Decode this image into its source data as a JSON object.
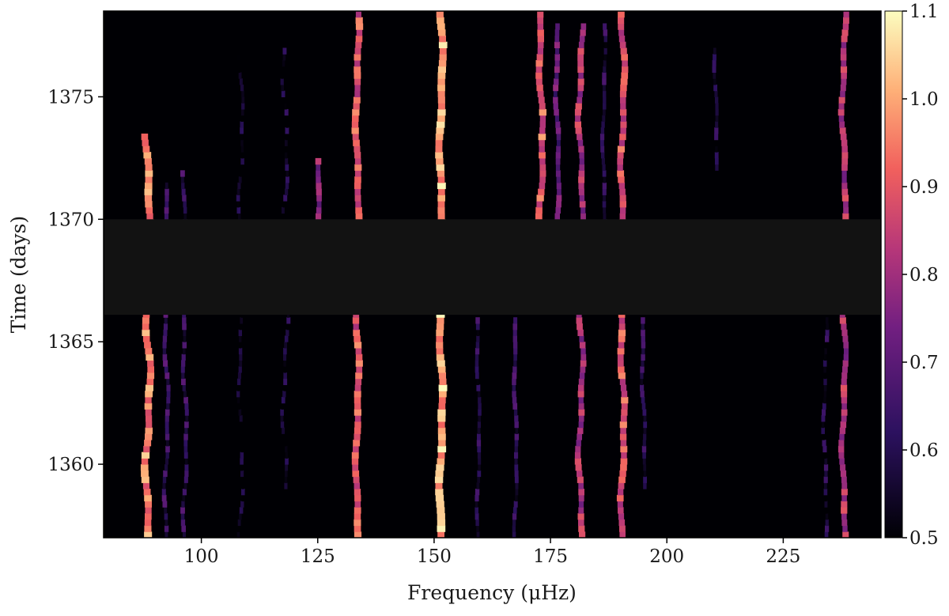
{
  "chart_data": {
    "type": "heatmap",
    "title": "",
    "xlabel": "Frequency (μHz)",
    "ylabel": "Time (days)",
    "xlim": [
      79,
      246
    ],
    "ylim": [
      1357,
      1378.5
    ],
    "x_ticks": [
      100,
      125,
      150,
      175,
      200,
      225
    ],
    "x_tick_labels": [
      "100",
      "125",
      "150",
      "175",
      "200",
      "225"
    ],
    "y_ticks": [
      1360,
      1365,
      1370,
      1375
    ],
    "y_tick_labels": [
      "1360",
      "1365",
      "1370",
      "1375"
    ],
    "gap": {
      "t_start": 1366.1,
      "t_end": 1370.0,
      "color": "#121212"
    },
    "colorbar": {
      "colormap": "magma",
      "vmin": 0.5,
      "vmax": 1.1,
      "ticks": [
        0.5,
        0.6,
        0.7,
        0.8,
        0.9,
        1.0,
        1.1
      ],
      "tick_labels": [
        "0.5",
        "0.6",
        "0.7",
        "0.8",
        "0.9",
        "1.0",
        "1.1"
      ]
    },
    "grid": false,
    "ridges": [
      {
        "freq": 88.5,
        "t_range": [
          1357,
          1373.5
        ],
        "peak": 1.05,
        "wobble": 0.9
      },
      {
        "freq": 92.5,
        "t_range": [
          1357,
          1371.5
        ],
        "peak": 0.72,
        "wobble": 0.7
      },
      {
        "freq": 96.5,
        "t_range": [
          1357,
          1372
        ],
        "peak": 0.7,
        "wobble": 0.7
      },
      {
        "freq": 108.5,
        "t_range": [
          1357,
          1377
        ],
        "peak": 0.62,
        "wobble": 0.8
      },
      {
        "freq": 118,
        "t_range": [
          1359,
          1377
        ],
        "peak": 0.64,
        "wobble": 0.9
      },
      {
        "freq": 125,
        "t_range": [
          1370,
          1372.5
        ],
        "peak": 0.85,
        "wobble": 0.5
      },
      {
        "freq": 133.5,
        "t_range": [
          1357,
          1378.5
        ],
        "peak": 0.98,
        "wobble": 0.6
      },
      {
        "freq": 151.5,
        "t_range": [
          1357,
          1378.5
        ],
        "peak": 1.1,
        "wobble": 0.6
      },
      {
        "freq": 159.5,
        "t_range": [
          1357,
          1366
        ],
        "peak": 0.68,
        "wobble": 0.5
      },
      {
        "freq": 167.5,
        "t_range": [
          1357,
          1366
        ],
        "peak": 0.7,
        "wobble": 0.5
      },
      {
        "freq": 173,
        "t_range": [
          1370,
          1378.5
        ],
        "peak": 1.0,
        "wobble": 0.7
      },
      {
        "freq": 176.5,
        "t_range": [
          1370,
          1378
        ],
        "peak": 0.8,
        "wobble": 0.6
      },
      {
        "freq": 181.5,
        "t_range": [
          1357,
          1378
        ],
        "peak": 0.9,
        "wobble": 0.8
      },
      {
        "freq": 186.5,
        "t_range": [
          1368,
          1378
        ],
        "peak": 0.68,
        "wobble": 0.5
      },
      {
        "freq": 190.5,
        "t_range": [
          1357,
          1378.5
        ],
        "peak": 0.98,
        "wobble": 0.7
      },
      {
        "freq": 195,
        "t_range": [
          1359,
          1366
        ],
        "peak": 0.7,
        "wobble": 0.6
      },
      {
        "freq": 210.5,
        "t_range": [
          1372,
          1377
        ],
        "peak": 0.66,
        "wobble": 0.5
      },
      {
        "freq": 234,
        "t_range": [
          1357,
          1366
        ],
        "peak": 0.66,
        "wobble": 0.6
      },
      {
        "freq": 238,
        "t_range": [
          1357,
          1378.5
        ],
        "peak": 0.9,
        "wobble": 0.7
      }
    ]
  }
}
